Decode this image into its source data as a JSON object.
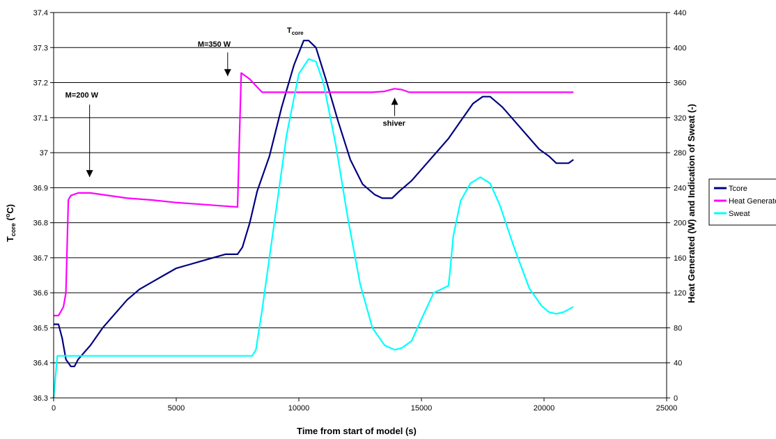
{
  "chart_data": {
    "type": "line",
    "xlabel": "Time from start of model (s)",
    "ylabel_left": {
      "main": "T",
      "sub": "core",
      "rest": " (",
      "sup": "o",
      "unit": "C)"
    },
    "ylabel_right": "Heat Generated (W) and Indication of Sweat (-)",
    "xlim": [
      0,
      25000
    ],
    "xticks": [
      0,
      5000,
      10000,
      15000,
      20000,
      25000
    ],
    "ylim_left": [
      36.3,
      37.4
    ],
    "yticks_left": [
      "36.3",
      "36.4",
      "36.5",
      "36.6",
      "36.7",
      "36.8",
      "36.9",
      "37",
      "37.1",
      "37.2",
      "37.3",
      "37.4"
    ],
    "ylim_right": [
      0,
      440
    ],
    "yticks_right": [
      "0",
      "40",
      "80",
      "120",
      "160",
      "200",
      "240",
      "280",
      "320",
      "360",
      "400",
      "440"
    ],
    "grid": "horizontal",
    "legend_position": "right",
    "legend": [
      "Tcore",
      "Heat Generated",
      "Sweat"
    ],
    "series": [
      {
        "name": "Tcore",
        "axis": "left",
        "color": "#000080",
        "x": [
          0,
          200,
          350,
          500,
          700,
          850,
          1000,
          1500,
          2000,
          2500,
          3000,
          3500,
          4000,
          4500,
          5000,
          5500,
          6000,
          6500,
          7000,
          7500,
          7700,
          8000,
          8300,
          8800,
          9300,
          9800,
          10200,
          10400,
          10700,
          11100,
          11600,
          12100,
          12600,
          13100,
          13400,
          13800,
          14100,
          14600,
          15100,
          15600,
          16100,
          16600,
          17100,
          17500,
          17800,
          18300,
          18800,
          19300,
          19800,
          20200,
          20500,
          21000,
          21200
        ],
        "y": [
          36.51,
          36.51,
          36.47,
          36.41,
          36.39,
          36.39,
          36.41,
          36.45,
          36.5,
          36.54,
          36.58,
          36.61,
          36.63,
          36.65,
          36.67,
          36.68,
          36.69,
          36.7,
          36.71,
          36.71,
          36.73,
          36.8,
          36.89,
          36.99,
          37.13,
          37.25,
          37.32,
          37.32,
          37.3,
          37.21,
          37.09,
          36.98,
          36.91,
          36.88,
          36.87,
          36.87,
          36.89,
          36.92,
          36.96,
          37.0,
          37.04,
          37.09,
          37.14,
          37.16,
          37.16,
          37.13,
          37.09,
          37.05,
          37.01,
          36.99,
          36.97,
          36.97,
          36.98
        ]
      },
      {
        "name": "Heat Generated",
        "axis": "right",
        "color": "#ff00ff",
        "x": [
          0,
          200,
          400,
          500,
          600,
          700,
          1000,
          1500,
          2000,
          2500,
          3000,
          4000,
          5000,
          6000,
          7000,
          7500,
          7650,
          7800,
          8000,
          8200,
          8500,
          9000,
          10000,
          11000,
          12000,
          13000,
          13500,
          13900,
          14200,
          14500,
          15000,
          16000,
          17000,
          18000,
          19000,
          20000,
          21000,
          21200
        ],
        "y": [
          94,
          94,
          104,
          120,
          226,
          231,
          234,
          234,
          232,
          230,
          228,
          226,
          223,
          221,
          219,
          218,
          371,
          368,
          364,
          358,
          349,
          349,
          349,
          349,
          349,
          349,
          350,
          353,
          352,
          349,
          349,
          349,
          349,
          349,
          349,
          349,
          349,
          349
        ]
      },
      {
        "name": "Sweat",
        "axis": "right",
        "color": "#00ffff",
        "x": [
          0,
          150,
          300,
          1000,
          3000,
          5000,
          7000,
          8100,
          8250,
          8500,
          9000,
          9500,
          10000,
          10400,
          10700,
          11000,
          11500,
          12000,
          12500,
          13000,
          13500,
          13900,
          14200,
          14600,
          15000,
          15500,
          16100,
          16150,
          16300,
          16600,
          17000,
          17400,
          17800,
          18200,
          18800,
          19400,
          19900,
          20200,
          20500,
          20800,
          21200
        ],
        "y": [
          0,
          48,
          48,
          48,
          48,
          48,
          48,
          48,
          55,
          100,
          200,
          300,
          370,
          387,
          384,
          360,
          290,
          205,
          130,
          80,
          60,
          55,
          57,
          65,
          90,
          120,
          128,
          140,
          185,
          225,
          245,
          252,
          245,
          220,
          170,
          125,
          105,
          98,
          96,
          98,
          104
        ]
      }
    ],
    "annotations": [
      {
        "text": "M=200 W",
        "x": 700,
        "y_right": 346
      },
      {
        "text": "M=350 W",
        "x": 7580,
        "y_right": 404
      },
      {
        "text": "shiver",
        "x": 14050,
        "y_right": 314
      }
    ],
    "tcore_label": {
      "main": "T",
      "sub": "core"
    }
  }
}
